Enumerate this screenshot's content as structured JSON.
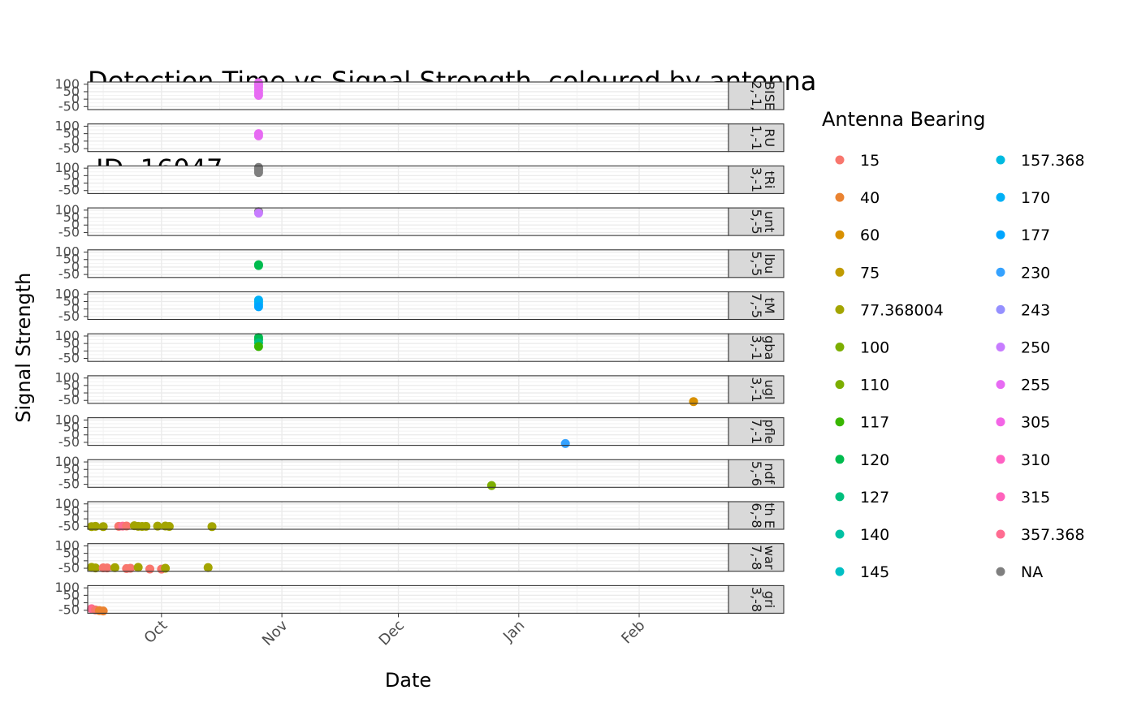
{
  "chart_data": {
    "type": "scatter",
    "title": "Detection Time vs Signal Strength, coloured by antenna",
    "subtitle": " ID  16047",
    "xlabel": "Date",
    "ylabel": "Signal Strength",
    "x_tick_labels": [
      "Oct",
      "Nov",
      "Dec",
      "Jan",
      "Feb"
    ],
    "x_ticks": [
      "2016-10-01",
      "2016-11-01",
      "2016-12-01",
      "2017-01-01",
      "2017-02-01"
    ],
    "xlim": [
      "2016-09-12",
      "2017-02-24"
    ],
    "y_tick_labels": [
      "100",
      "50",
      "0",
      "-50"
    ],
    "y_ticks": [
      100,
      50,
      0,
      -50
    ],
    "ylim": [
      -70,
      115
    ],
    "grid": true,
    "legend": {
      "title": "Antenna Bearing",
      "placement": "right",
      "entries": [
        {
          "label": "15",
          "color": "#F8766D"
        },
        {
          "label": "40",
          "color": "#EA8331"
        },
        {
          "label": "60",
          "color": "#D89000"
        },
        {
          "label": "75",
          "color": "#C09B00"
        },
        {
          "label": "77.368004",
          "color": "#A3A500"
        },
        {
          "label": "100",
          "color": "#7CAE00"
        },
        {
          "label": "110",
          "color": "#7CAE00"
        },
        {
          "label": "117",
          "color": "#39B600"
        },
        {
          "label": "120",
          "color": "#00BB4E"
        },
        {
          "label": "127",
          "color": "#00BF7D"
        },
        {
          "label": "140",
          "color": "#00C1A3"
        },
        {
          "label": "145",
          "color": "#00BFC4"
        },
        {
          "label": "157.368",
          "color": "#00BAE0"
        },
        {
          "label": "170",
          "color": "#00B0F6"
        },
        {
          "label": "177",
          "color": "#00A5FF"
        },
        {
          "label": "230",
          "color": "#35A2FF"
        },
        {
          "label": "243",
          "color": "#9590FF"
        },
        {
          "label": "250",
          "color": "#C77CFF"
        },
        {
          "label": "255",
          "color": "#E76BF3"
        },
        {
          "label": "305",
          "color": "#F365E6"
        },
        {
          "label": "310",
          "color": "#FF61C3"
        },
        {
          "label": "315",
          "color": "#FF62BC"
        },
        {
          "label": "357.368",
          "color": "#FF6C91"
        },
        {
          "label": "NA",
          "color": "#7F7F7F"
        }
      ]
    },
    "facets": [
      {
        "strip": "BISE\n\n2,-1,",
        "points": [
          {
            "date": "2016-10-26",
            "y": 110,
            "color": "#E76BF3"
          },
          {
            "date": "2016-10-26",
            "y": 100,
            "color": "#E76BF3"
          },
          {
            "date": "2016-10-26",
            "y": 90,
            "color": "#E76BF3"
          },
          {
            "date": "2016-10-26",
            "y": 80,
            "color": "#E76BF3"
          },
          {
            "date": "2016-10-26",
            "y": 60,
            "color": "#E76BF3"
          },
          {
            "date": "2016-10-26",
            "y": 40,
            "color": "#E76BF3"
          },
          {
            "date": "2016-10-26",
            "y": 25,
            "color": "#E76BF3"
          }
        ]
      },
      {
        "strip": "RU\n\n1,-1",
        "points": [
          {
            "date": "2016-10-26",
            "y": 50,
            "color": "#E76BF3"
          },
          {
            "date": "2016-10-26",
            "y": 35,
            "color": "#E76BF3"
          }
        ]
      },
      {
        "strip": "tRi\n\n3,-1",
        "points": [
          {
            "date": "2016-10-26",
            "y": 105,
            "color": "#7F7F7F"
          },
          {
            "date": "2016-10-26",
            "y": 95,
            "color": "#7F7F7F"
          },
          {
            "date": "2016-10-26",
            "y": 85,
            "color": "#7F7F7F"
          },
          {
            "date": "2016-10-26",
            "y": 70,
            "color": "#7F7F7F"
          }
        ]
      },
      {
        "strip": "unt\n\n5,-5",
        "points": [
          {
            "date": "2016-10-26",
            "y": 90,
            "color": "#7F7F7F"
          },
          {
            "date": "2016-10-26",
            "y": 80,
            "color": "#C77CFF"
          }
        ]
      },
      {
        "strip": "lbu\n\n5,-5",
        "points": [
          {
            "date": "2016-10-26",
            "y": 15,
            "color": "#00BB4E"
          },
          {
            "date": "2016-10-26",
            "y": 10,
            "color": "#00BB4E"
          }
        ]
      },
      {
        "strip": "tM\n\n7,-5",
        "points": [
          {
            "date": "2016-10-26",
            "y": 60,
            "color": "#00B0F6"
          },
          {
            "date": "2016-10-26",
            "y": 45,
            "color": "#00B0F6"
          },
          {
            "date": "2016-10-26",
            "y": 30,
            "color": "#00B0F6"
          },
          {
            "date": "2016-10-26",
            "y": 15,
            "color": "#00A5FF"
          }
        ]
      },
      {
        "strip": "gba\n\n3,-1",
        "points": [
          {
            "date": "2016-10-26",
            "y": 90,
            "color": "#00BB4E"
          },
          {
            "date": "2016-10-26",
            "y": 75,
            "color": "#00BB4E"
          },
          {
            "date": "2016-10-26",
            "y": 55,
            "color": "#00BF7D"
          },
          {
            "date": "2016-10-26",
            "y": 30,
            "color": "#39B600"
          }
        ]
      },
      {
        "strip": "ugl\n\n3,-1",
        "points": [
          {
            "date": "2017-02-15",
            "y": -58,
            "color": "#D89000"
          }
        ]
      },
      {
        "strip": "pfle\n\n7,-1",
        "points": [
          {
            "date": "2017-01-13",
            "y": -58,
            "color": "#35A2FF"
          }
        ]
      },
      {
        "strip": "ndf\n\n5,-6",
        "points": [
          {
            "date": "2016-12-25",
            "y": -58,
            "color": "#7CAE00"
          }
        ]
      },
      {
        "strip": "th E\n\n6,-8",
        "points": [
          {
            "date": "2016-09-13",
            "y": -52,
            "color": "#A3A500"
          },
          {
            "date": "2016-09-14",
            "y": -50,
            "color": "#A3A500"
          },
          {
            "date": "2016-09-16",
            "y": -52,
            "color": "#A3A500"
          },
          {
            "date": "2016-09-20",
            "y": -50,
            "color": "#F8766D"
          },
          {
            "date": "2016-09-21",
            "y": -49,
            "color": "#FF6C91"
          },
          {
            "date": "2016-09-22",
            "y": -48,
            "color": "#F8766D"
          },
          {
            "date": "2016-09-24",
            "y": -46,
            "color": "#A3A500"
          },
          {
            "date": "2016-09-25",
            "y": -50,
            "color": "#A3A500"
          },
          {
            "date": "2016-09-26",
            "y": -51,
            "color": "#A3A500"
          },
          {
            "date": "2016-09-27",
            "y": -50,
            "color": "#A3A500"
          },
          {
            "date": "2016-09-30",
            "y": -49,
            "color": "#A3A500"
          },
          {
            "date": "2016-10-02",
            "y": -48,
            "color": "#A3A500"
          },
          {
            "date": "2016-10-03",
            "y": -51,
            "color": "#A3A500"
          },
          {
            "date": "2016-10-14",
            "y": -52,
            "color": "#A3A500"
          }
        ]
      },
      {
        "strip": "war\n\n7,-8",
        "points": [
          {
            "date": "2016-09-13",
            "y": -44,
            "color": "#A3A500"
          },
          {
            "date": "2016-09-14",
            "y": -48,
            "color": "#A3A500"
          },
          {
            "date": "2016-09-16",
            "y": -47,
            "color": "#F8766D"
          },
          {
            "date": "2016-09-17",
            "y": -48,
            "color": "#F8766D"
          },
          {
            "date": "2016-09-19",
            "y": -46,
            "color": "#A3A500"
          },
          {
            "date": "2016-09-22",
            "y": -52,
            "color": "#F8766D"
          },
          {
            "date": "2016-09-23",
            "y": -50,
            "color": "#F8766D"
          },
          {
            "date": "2016-09-25",
            "y": -44,
            "color": "#A3A500"
          },
          {
            "date": "2016-09-28",
            "y": -55,
            "color": "#F8766D"
          },
          {
            "date": "2016-10-01",
            "y": -56,
            "color": "#F8766D"
          },
          {
            "date": "2016-10-02",
            "y": -50,
            "color": "#A3A500"
          },
          {
            "date": "2016-10-13",
            "y": -45,
            "color": "#A3A500"
          }
        ]
      },
      {
        "strip": "gri\n\n3,-8",
        "points": [
          {
            "date": "2016-09-13",
            "y": -40,
            "color": "#FF6C91"
          },
          {
            "date": "2016-09-14",
            "y": -48,
            "color": "#F8766D"
          },
          {
            "date": "2016-09-15",
            "y": -52,
            "color": "#EA8331"
          },
          {
            "date": "2016-09-16",
            "y": -55,
            "color": "#EA8331"
          }
        ]
      }
    ]
  }
}
